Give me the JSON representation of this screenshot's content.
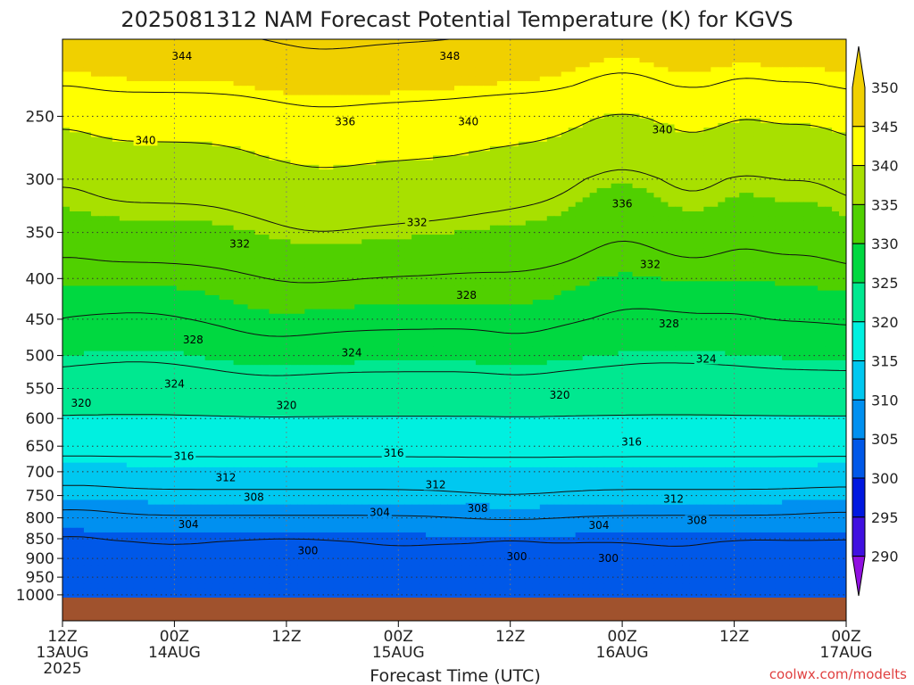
{
  "chart_data": {
    "type": "heatmap",
    "title": "2025081312 NAM Forecast Potential Temperature (K) for KGVS",
    "xlabel": "Forecast Time (UTC)",
    "ylabel": "",
    "credit": "coolwx.com/modelts",
    "credit_color": "#e04040",
    "ground_color": "#a0522d",
    "y_scale": "log",
    "y_ticks": [
      250,
      300,
      350,
      400,
      450,
      500,
      550,
      600,
      650,
      700,
      750,
      800,
      850,
      900,
      950,
      1000
    ],
    "y_range": [
      200,
      1008
    ],
    "x_range": [
      0,
      84
    ],
    "x_ticks": [
      {
        "h": 0,
        "l1": "12Z",
        "l2": "13AUG",
        "l3": "2025"
      },
      {
        "h": 12,
        "l1": "00Z",
        "l2": "14AUG",
        "l3": ""
      },
      {
        "h": 24,
        "l1": "12Z",
        "l2": "",
        "l3": ""
      },
      {
        "h": 36,
        "l1": "00Z",
        "l2": "15AUG",
        "l3": ""
      },
      {
        "h": 48,
        "l1": "12Z",
        "l2": "",
        "l3": ""
      },
      {
        "h": 60,
        "l1": "00Z",
        "l2": "16AUG",
        "l3": ""
      },
      {
        "h": 72,
        "l1": "12Z",
        "l2": "",
        "l3": ""
      },
      {
        "h": 84,
        "l1": "00Z",
        "l2": "17AUG",
        "l3": ""
      }
    ],
    "colorbar": {
      "ticks": [
        350,
        345,
        340,
        335,
        330,
        325,
        320,
        315,
        310,
        305,
        300,
        295,
        290
      ],
      "bins": [
        {
          "lo": 345,
          "hi": 355,
          "color": "#f0d000"
        },
        {
          "lo": 340,
          "hi": 345,
          "color": "#ffff00"
        },
        {
          "lo": 335,
          "hi": 340,
          "color": "#a8e000"
        },
        {
          "lo": 330,
          "hi": 335,
          "color": "#50d000"
        },
        {
          "lo": 325,
          "hi": 330,
          "color": "#00d840"
        },
        {
          "lo": 320,
          "hi": 325,
          "color": "#00e890"
        },
        {
          "lo": 315,
          "hi": 320,
          "color": "#00f0e0"
        },
        {
          "lo": 310,
          "hi": 315,
          "color": "#00c8f0"
        },
        {
          "lo": 305,
          "hi": 310,
          "color": "#0090f0"
        },
        {
          "lo": 300,
          "hi": 305,
          "color": "#0058e8"
        },
        {
          "lo": 295,
          "hi": 300,
          "color": "#0018e0"
        },
        {
          "lo": 290,
          "hi": 295,
          "color": "#4010e0"
        },
        {
          "lo": 280,
          "hi": 290,
          "color": "#9010e0"
        }
      ]
    },
    "contour_levels": [
      300,
      304,
      308,
      312,
      316,
      320,
      324,
      328,
      332,
      336,
      340,
      344,
      348
    ],
    "contour_labels": [
      {
        "level": 344,
        "h": 12.8,
        "p": 210
      },
      {
        "level": 348,
        "h": 41.5,
        "p": 210
      },
      {
        "level": 340,
        "h": 8.9,
        "p": 268
      },
      {
        "level": 336,
        "h": 30.3,
        "p": 254
      },
      {
        "level": 340,
        "h": 43.5,
        "p": 254
      },
      {
        "level": 340,
        "h": 64.3,
        "p": 260
      },
      {
        "level": 336,
        "h": 60.0,
        "p": 322
      },
      {
        "level": 332,
        "h": 38.0,
        "p": 340
      },
      {
        "level": 332,
        "h": 19.0,
        "p": 362
      },
      {
        "level": 332,
        "h": 63.0,
        "p": 384
      },
      {
        "level": 328,
        "h": 43.3,
        "p": 420
      },
      {
        "level": 328,
        "h": 65.0,
        "p": 456
      },
      {
        "level": 328,
        "h": 14.0,
        "p": 478
      },
      {
        "level": 324,
        "h": 31.0,
        "p": 496
      },
      {
        "level": 324,
        "h": 69.0,
        "p": 505
      },
      {
        "level": 324,
        "h": 12.0,
        "p": 543
      },
      {
        "level": 320,
        "h": 2.0,
        "p": 574
      },
      {
        "level": 320,
        "h": 24.0,
        "p": 578
      },
      {
        "level": 320,
        "h": 53.3,
        "p": 561
      },
      {
        "level": 316,
        "h": 13.0,
        "p": 669
      },
      {
        "level": 316,
        "h": 35.5,
        "p": 663
      },
      {
        "level": 316,
        "h": 61.0,
        "p": 642
      },
      {
        "level": 312,
        "h": 17.5,
        "p": 712
      },
      {
        "level": 312,
        "h": 40.0,
        "p": 727
      },
      {
        "level": 312,
        "h": 65.5,
        "p": 758
      },
      {
        "level": 308,
        "h": 20.5,
        "p": 754
      },
      {
        "level": 308,
        "h": 44.5,
        "p": 778
      },
      {
        "level": 308,
        "h": 68.0,
        "p": 806
      },
      {
        "level": 304,
        "h": 13.5,
        "p": 816
      },
      {
        "level": 304,
        "h": 34.0,
        "p": 788
      },
      {
        "level": 304,
        "h": 57.5,
        "p": 818
      },
      {
        "level": 300,
        "h": 26.3,
        "p": 880
      },
      {
        "level": 300,
        "h": 48.7,
        "p": 895
      },
      {
        "level": 300,
        "h": 58.5,
        "p": 900
      }
    ]
  }
}
